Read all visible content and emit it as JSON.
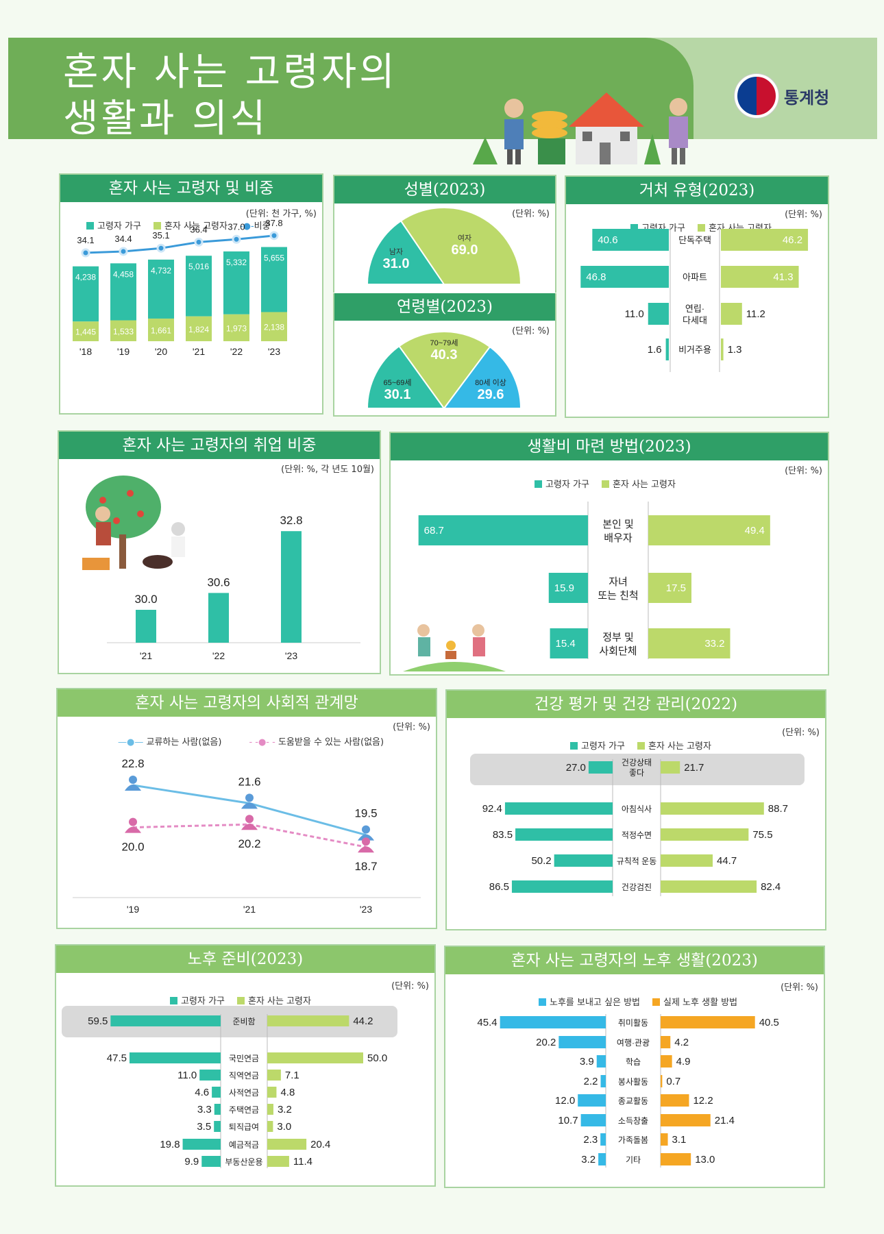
{
  "title": {
    "line1": "혼자 사는 고령자의",
    "line2": "생활과 의식"
  },
  "logo": {
    "text": "통계청"
  },
  "colors": {
    "teal": "#2fbfa6",
    "lightgreen": "#bcd96a",
    "blue": "#35b9e6",
    "orange": "#f5a623",
    "header": "#2f9f67"
  },
  "legend": {
    "household": "고령자 가구",
    "alone": "혼자 사는 고령자",
    "ratio": "비중",
    "want": "노후를 보내고 싶은 방법",
    "actual": "실제 노후 생활 방법",
    "exchange": "교류하는 사람(없음)",
    "help": "도움받을 수 있는 사람(없음)"
  },
  "panels": {
    "p1": {
      "title": "혼자 사는 고령자 및 비중",
      "unit": "(단위: 천 가구, %)"
    },
    "p2": {
      "title": "성별(2023)",
      "unit": "(단위: %)"
    },
    "p3": {
      "title": "연령별(2023)",
      "unit": "(단위: %)"
    },
    "p4": {
      "title": "거처 유형(2023)",
      "unit": "(단위: %)"
    },
    "p5": {
      "title": "혼자 사는 고령자의 취업 비중",
      "unit": "(단위: %, 각 년도 10월)"
    },
    "p6": {
      "title": "생활비 마련 방법(2023)",
      "unit": "(단위: %)"
    },
    "p7": {
      "title": "혼자 사는 고령자의 사회적 관계망",
      "unit": "(단위: %)"
    },
    "p8": {
      "title": "건강 평가 및 건강 관리(2022)",
      "unit": "(단위: %)"
    },
    "p9": {
      "title": "노후 준비(2023)",
      "unit": "(단위: %)"
    },
    "p10": {
      "title": "혼자 사는 고령자의 노후 생활(2023)",
      "unit": "(단위: %)"
    }
  },
  "chart_data": [
    {
      "type": "bar",
      "title": "혼자 사는 고령자 및 비중",
      "categories": [
        "'18",
        "'19",
        "'20",
        "'21",
        "'22",
        "'23"
      ],
      "series": [
        {
          "name": "고령자 가구",
          "values": [
            4238,
            4458,
            4732,
            5016,
            5332,
            5655
          ]
        },
        {
          "name": "혼자 사는 고령자",
          "values": [
            1445,
            1533,
            1661,
            1824,
            1973,
            2138
          ]
        },
        {
          "name": "비중",
          "values": [
            34.1,
            34.4,
            35.1,
            36.4,
            37.0,
            37.8
          ]
        }
      ]
    },
    {
      "type": "pie",
      "title": "성별(2023)",
      "categories": [
        "남자",
        "여자"
      ],
      "values": [
        31.0,
        69.0
      ]
    },
    {
      "type": "pie",
      "title": "연령별(2023)",
      "categories": [
        "65~69세",
        "70~79세",
        "80세 이상"
      ],
      "values": [
        30.1,
        40.3,
        29.6
      ]
    },
    {
      "type": "bar",
      "title": "거처 유형(2023)",
      "categories": [
        "단독주택",
        "아파트",
        "연립·다세대",
        "비거주용"
      ],
      "series": [
        {
          "name": "고령자 가구",
          "values": [
            40.6,
            46.8,
            11.0,
            1.6
          ]
        },
        {
          "name": "혼자 사는 고령자",
          "values": [
            46.2,
            41.3,
            11.2,
            1.3
          ]
        }
      ]
    },
    {
      "type": "bar",
      "title": "혼자 사는 고령자의 취업 비중",
      "categories": [
        "'21",
        "'22",
        "'23"
      ],
      "values": [
        30.0,
        30.6,
        32.8
      ]
    },
    {
      "type": "bar",
      "title": "생활비 마련 방법(2023)",
      "categories": [
        "본인 및 배우자",
        "자녀 또는 친척",
        "정부 및 사회단체"
      ],
      "series": [
        {
          "name": "고령자 가구",
          "values": [
            68.7,
            15.9,
            15.4
          ]
        },
        {
          "name": "혼자 사는 고령자",
          "values": [
            49.4,
            17.5,
            33.2
          ]
        }
      ]
    },
    {
      "type": "line",
      "title": "혼자 사는 고령자의 사회적 관계망",
      "categories": [
        "'19",
        "'21",
        "'23"
      ],
      "series": [
        {
          "name": "교류하는 사람(없음)",
          "values": [
            22.8,
            21.6,
            19.5
          ]
        },
        {
          "name": "도움받을 수 있는 사람(없음)",
          "values": [
            20.0,
            20.2,
            18.7
          ]
        }
      ]
    },
    {
      "type": "bar",
      "title": "건강 평가 및 건강 관리(2022)",
      "categories": [
        "건강상태 좋다",
        "아침식사",
        "적정수면",
        "규칙적 운동",
        "건강검진"
      ],
      "series": [
        {
          "name": "고령자 가구",
          "values": [
            27.0,
            92.4,
            83.5,
            50.2,
            86.5
          ]
        },
        {
          "name": "혼자 사는 고령자",
          "values": [
            21.7,
            88.7,
            75.5,
            44.7,
            82.4
          ]
        }
      ]
    },
    {
      "type": "bar",
      "title": "노후 준비(2023)",
      "categories": [
        "준비함",
        "국민연금",
        "직역연금",
        "사적연금",
        "주택연금",
        "퇴직급여",
        "예금적금",
        "부동산운용"
      ],
      "series": [
        {
          "name": "고령자 가구",
          "values": [
            59.5,
            47.5,
            11.0,
            4.6,
            3.3,
            3.5,
            19.8,
            9.9
          ]
        },
        {
          "name": "혼자 사는 고령자",
          "values": [
            44.2,
            50.0,
            7.1,
            4.8,
            3.2,
            3.0,
            20.4,
            11.4
          ]
        }
      ]
    },
    {
      "type": "bar",
      "title": "혼자 사는 고령자의 노후 생활(2023)",
      "categories": [
        "취미활동",
        "여행·관광",
        "학습",
        "봉사활동",
        "종교활동",
        "소득창출",
        "가족돌봄",
        "기타"
      ],
      "series": [
        {
          "name": "노후를 보내고 싶은 방법",
          "values": [
            45.4,
            20.2,
            3.9,
            2.2,
            12.0,
            10.7,
            2.3,
            3.2
          ]
        },
        {
          "name": "실제 노후 생활 방법",
          "values": [
            40.5,
            4.2,
            4.9,
            0.7,
            12.2,
            21.4,
            3.1,
            13.0
          ]
        }
      ]
    }
  ]
}
